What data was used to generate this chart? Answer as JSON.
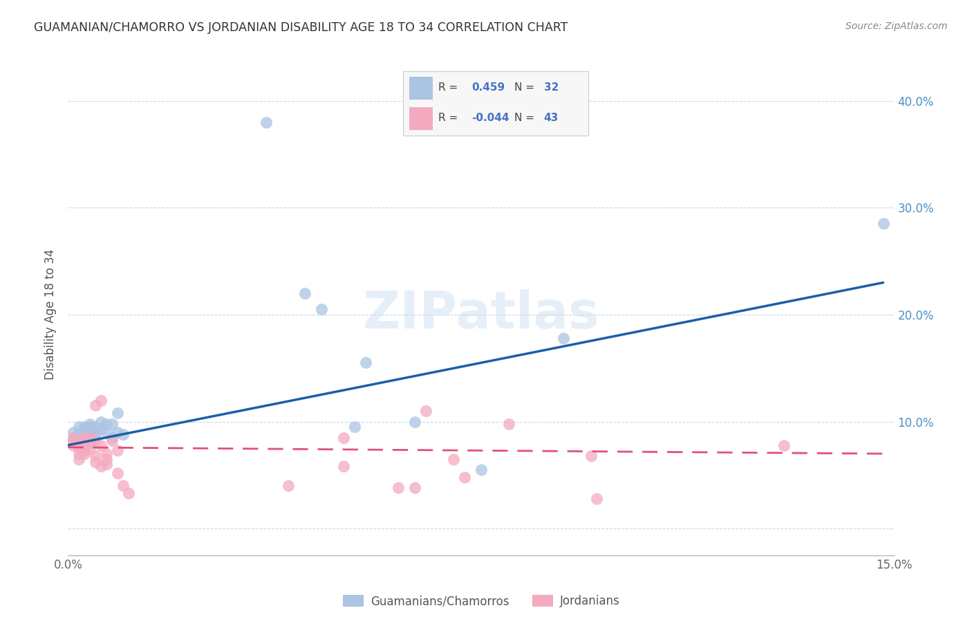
{
  "title": "GUAMANIAN/CHAMORRO VS JORDANIAN DISABILITY AGE 18 TO 34 CORRELATION CHART",
  "source": "Source: ZipAtlas.com",
  "ylabel": "Disability Age 18 to 34",
  "xlim": [
    0.0,
    0.15
  ],
  "ylim": [
    -0.025,
    0.425
  ],
  "ytick_positions": [
    0.0,
    0.1,
    0.2,
    0.3,
    0.4
  ],
  "ytick_labels": [
    "",
    "10.0%",
    "20.0%",
    "30.0%",
    "40.0%"
  ],
  "xtick_positions": [
    0.0,
    0.15
  ],
  "xtick_labels": [
    "0.0%",
    "15.0%"
  ],
  "blue_R": "0.459",
  "blue_N": "32",
  "pink_R": "-0.044",
  "pink_N": "43",
  "blue_color": "#aac4e2",
  "pink_color": "#f4aabe",
  "blue_line_color": "#1a5fa8",
  "pink_line_color": "#e0507a",
  "background_color": "#ffffff",
  "grid_color": "#c8d8e8",
  "watermark": "ZIPatlas",
  "legend_label_color": "#4472c4",
  "blue_x": [
    0.001,
    0.001,
    0.002,
    0.002,
    0.003,
    0.003,
    0.003,
    0.004,
    0.004,
    0.004,
    0.004,
    0.005,
    0.005,
    0.005,
    0.006,
    0.006,
    0.007,
    0.007,
    0.008,
    0.008,
    0.009,
    0.009,
    0.01,
    0.036,
    0.043,
    0.046,
    0.052,
    0.054,
    0.063,
    0.075,
    0.09,
    0.148
  ],
  "blue_y": [
    0.085,
    0.09,
    0.088,
    0.095,
    0.09,
    0.093,
    0.095,
    0.087,
    0.09,
    0.095,
    0.098,
    0.085,
    0.09,
    0.095,
    0.093,
    0.1,
    0.09,
    0.098,
    0.085,
    0.098,
    0.09,
    0.108,
    0.088,
    0.38,
    0.22,
    0.205,
    0.095,
    0.155,
    0.1,
    0.055,
    0.178,
    0.285
  ],
  "pink_x": [
    0.001,
    0.001,
    0.001,
    0.002,
    0.002,
    0.002,
    0.002,
    0.002,
    0.003,
    0.003,
    0.003,
    0.003,
    0.003,
    0.004,
    0.004,
    0.004,
    0.005,
    0.005,
    0.005,
    0.005,
    0.006,
    0.006,
    0.006,
    0.007,
    0.007,
    0.007,
    0.008,
    0.009,
    0.009,
    0.01,
    0.011,
    0.04,
    0.05,
    0.05,
    0.06,
    0.063,
    0.065,
    0.07,
    0.072,
    0.08,
    0.095,
    0.096,
    0.13
  ],
  "pink_y": [
    0.078,
    0.082,
    0.085,
    0.065,
    0.07,
    0.075,
    0.078,
    0.082,
    0.07,
    0.073,
    0.078,
    0.082,
    0.085,
    0.075,
    0.08,
    0.085,
    0.062,
    0.068,
    0.082,
    0.115,
    0.058,
    0.078,
    0.12,
    0.06,
    0.065,
    0.07,
    0.082,
    0.052,
    0.073,
    0.04,
    0.033,
    0.04,
    0.058,
    0.085,
    0.038,
    0.038,
    0.11,
    0.065,
    0.048,
    0.098,
    0.068,
    0.028,
    0.078
  ],
  "blue_line_x": [
    0.0,
    0.148
  ],
  "blue_line_y": [
    0.078,
    0.23
  ],
  "pink_line_x": [
    0.0,
    0.148
  ],
  "pink_line_y": [
    0.076,
    0.07
  ]
}
